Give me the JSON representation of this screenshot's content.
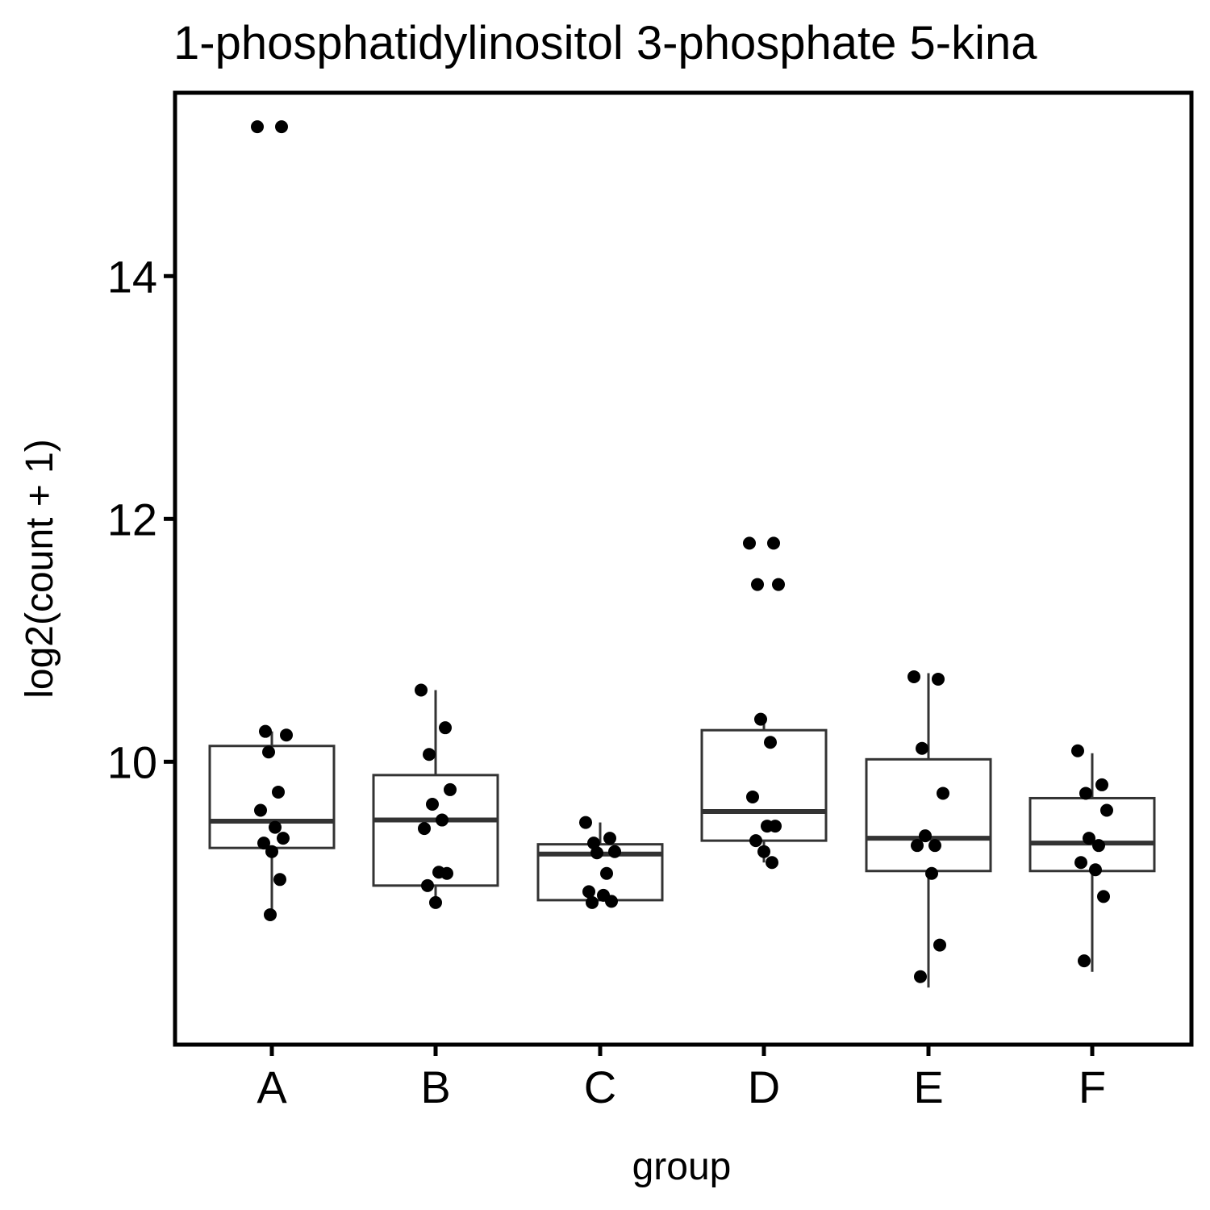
{
  "chart_data": {
    "type": "box",
    "title": "1-phosphatidylinositol 3-phosphate 5-kina",
    "xlabel": "group",
    "ylabel": "log2(count + 1)",
    "categories": [
      "A",
      "B",
      "C",
      "D",
      "E",
      "F"
    ],
    "yticks": [
      10,
      12,
      14
    ],
    "ylim": [
      7.67,
      15.51
    ],
    "grid": false,
    "legend": "none",
    "colors": {
      "box_stroke": "#333333",
      "point": "#000000",
      "panel_border": "#000000",
      "background": "#ffffff"
    },
    "boxes": [
      {
        "group": "A",
        "q1": 9.29,
        "median": 9.51,
        "q3": 10.13,
        "whisker_low": 8.74,
        "whisker_high": 10.25
      },
      {
        "group": "B",
        "q1": 8.98,
        "median": 9.52,
        "q3": 9.89,
        "whisker_low": 8.84,
        "whisker_high": 10.59
      },
      {
        "group": "C",
        "q1": 8.86,
        "median": 9.24,
        "q3": 9.32,
        "whisker_low": 8.86,
        "whisker_high": 9.5
      },
      {
        "group": "D",
        "q1": 9.35,
        "median": 9.59,
        "q3": 10.26,
        "whisker_low": 9.17,
        "whisker_high": 10.35
      },
      {
        "group": "E",
        "q1": 9.1,
        "median": 9.37,
        "q3": 10.02,
        "whisker_low": 8.14,
        "whisker_high": 10.73
      },
      {
        "group": "F",
        "q1": 9.1,
        "median": 9.33,
        "q3": 9.7,
        "whisker_low": 8.27,
        "whisker_high": 10.07
      }
    ],
    "points": [
      {
        "group": "A",
        "values": [
          15.23,
          15.23,
          10.25,
          10.22,
          10.08,
          9.75,
          9.6,
          9.46,
          9.37,
          9.33,
          9.26,
          9.03,
          8.74
        ]
      },
      {
        "group": "B",
        "values": [
          10.59,
          10.28,
          10.06,
          9.77,
          9.65,
          9.52,
          9.45,
          9.09,
          9.08,
          8.98,
          8.84
        ]
      },
      {
        "group": "C",
        "values": [
          9.5,
          9.37,
          9.33,
          9.26,
          9.25,
          9.08,
          8.93,
          8.9,
          8.85,
          8.84
        ]
      },
      {
        "group": "D",
        "values": [
          11.8,
          11.8,
          11.46,
          11.46,
          10.35,
          10.16,
          9.71,
          9.47,
          9.47,
          9.35,
          9.26,
          9.17
        ]
      },
      {
        "group": "E",
        "values": [
          10.7,
          10.68,
          10.11,
          9.74,
          9.39,
          9.31,
          9.31,
          9.08,
          8.49,
          8.23
        ]
      },
      {
        "group": "F",
        "values": [
          10.09,
          9.81,
          9.74,
          9.6,
          9.37,
          9.31,
          9.17,
          9.11,
          8.89,
          8.36
        ]
      }
    ]
  }
}
